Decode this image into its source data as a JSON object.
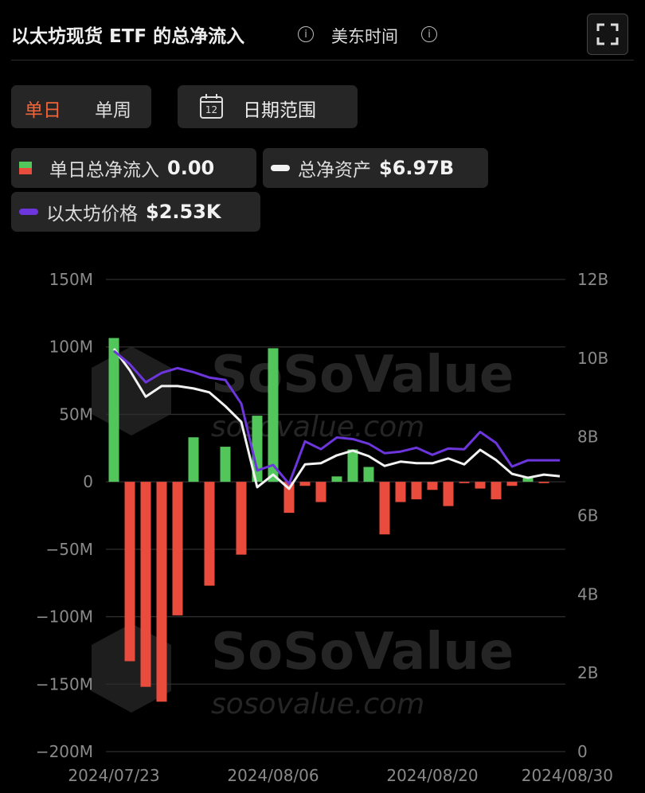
{
  "header": {
    "title": "以太坊现货 ETF 的总净流入",
    "timezone": "美东时间"
  },
  "tabs": [
    "单日",
    "单周"
  ],
  "date_button": {
    "icon": "12",
    "label": "日期范围"
  },
  "watermark": {
    "brand": "SoSoValue",
    "url": "sosovalue.com"
  },
  "chart_data": {
    "type": "bar",
    "categories": [
      "2024/07/23",
      null,
      null,
      null,
      null,
      null,
      null,
      null,
      null,
      null,
      "2024/08/06",
      null,
      null,
      null,
      null,
      null,
      null,
      null,
      null,
      null,
      "2024/08/20",
      null,
      null,
      null,
      null,
      null,
      null,
      null,
      "2024/08/30"
    ],
    "series": [
      {
        "name": "单日总净流入",
        "legend_value": "0.00",
        "type": "bar",
        "color": "#52c65b",
        "negative_color": "#e94b3c",
        "values": [
          106.6,
          -133,
          -152,
          -163,
          -99,
          33,
          -77,
          26,
          -54,
          49,
          99,
          -23,
          -3,
          -15,
          4,
          24,
          11,
          -39,
          -15,
          -13,
          -6,
          -18,
          -1,
          -5,
          -13,
          -3,
          3,
          -1,
          0
        ]
      },
      {
        "name": "总净资产",
        "legend_value": "$6.97B",
        "type": "line",
        "axis": "y2",
        "color": "#f2f2f2",
        "values": [
          10.24,
          9.69,
          9.02,
          9.29,
          9.29,
          9.23,
          9.13,
          8.78,
          8.38,
          6.72,
          7.04,
          6.68,
          7.3,
          7.33,
          7.53,
          7.65,
          7.51,
          7.26,
          7.37,
          7.33,
          7.33,
          7.45,
          7.3,
          7.67,
          7.41,
          7.06,
          6.96,
          7.04,
          7.0
        ]
      },
      {
        "name": "以太坊价格",
        "legend_value": "$2.53K",
        "type": "line",
        "axis": "y3",
        "color": "#6c36dc",
        "values": [
          3480,
          3364,
          3207,
          3289,
          3330,
          3295,
          3248,
          3227,
          3022,
          2441,
          2489,
          2325,
          2694,
          2626,
          2728,
          2714,
          2673,
          2591,
          2605,
          2639,
          2577,
          2632,
          2626,
          2776,
          2680,
          2475,
          2530,
          2530,
          2530
        ]
      }
    ],
    "ylim": [
      -200,
      150
    ],
    "yticks": [
      {
        "value": 150,
        "label": "150M"
      },
      {
        "value": 100,
        "label": "100M"
      },
      {
        "value": 50,
        "label": "50M"
      },
      0,
      {
        "value": -50,
        "label": "−50M"
      },
      {
        "value": -100,
        "label": "−100M"
      },
      {
        "value": -150,
        "label": "−150M"
      },
      {
        "value": -200,
        "label": "−200M"
      }
    ],
    "y2lim": [
      0,
      12
    ],
    "y2ticks": [
      {
        "value": 12,
        "label": "12B"
      },
      {
        "value": 10,
        "label": "10B"
      },
      {
        "value": 8,
        "label": "8B"
      },
      {
        "value": 6,
        "label": "6B"
      },
      {
        "value": 4,
        "label": "4B"
      },
      {
        "value": 2,
        "label": "2B"
      },
      0
    ],
    "y3lim": [
      0,
      4100
    ],
    "grid": true
  }
}
